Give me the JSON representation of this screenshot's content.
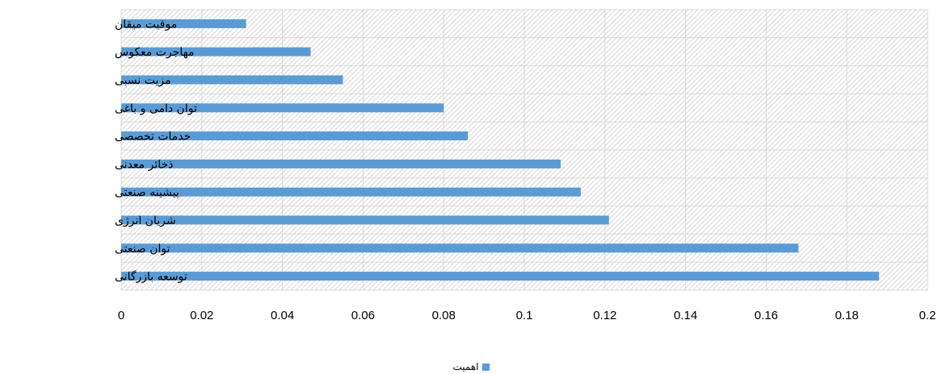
{
  "chart_data": {
    "type": "bar",
    "orientation": "horizontal",
    "categories": [
      "موقیت میقان",
      "مهاجرت معکوس",
      "مزیت نسبی",
      "توان دامی و باغی",
      "خدمات تخصصی",
      "ذخائر معدنی",
      "پیشینه صنعتی",
      "شریان انرژی",
      "توان صنعتی",
      "توسعه بازرگانی"
    ],
    "series": [
      {
        "name": "اهمیت",
        "values": [
          0.031,
          0.047,
          0.055,
          0.08,
          0.086,
          0.109,
          0.114,
          0.121,
          0.168,
          0.188
        ]
      }
    ],
    "xlim": [
      0,
      0.2
    ],
    "xticks": [
      "0",
      "0.02",
      "0.04",
      "0.06",
      "0.08",
      "0.1",
      "0.12",
      "0.14",
      "0.16",
      "0.18",
      "0.2"
    ],
    "grid": true,
    "legend_position": "bottom",
    "colors": {
      "bar": "#5b9bd5",
      "grid": "#d9d9d9",
      "hatch": "#d9d9d9"
    }
  }
}
